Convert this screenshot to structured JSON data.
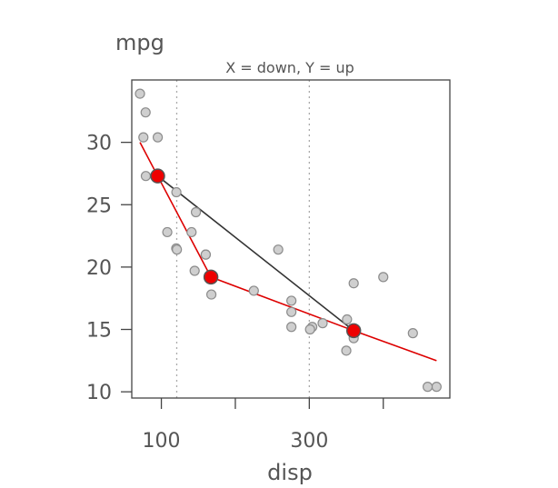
{
  "chart_data": {
    "type": "scatter",
    "title": "",
    "subtitle": "X = down, Y = up",
    "xlabel": "disp",
    "ylabel": "mpg",
    "xlim": [
      60,
      490
    ],
    "ylim": [
      9.5,
      35
    ],
    "x_ticks": [
      100,
      200,
      300,
      400
    ],
    "x_tick_labels": [
      "100",
      "",
      "300",
      ""
    ],
    "y_ticks": [
      10,
      15,
      20,
      25,
      30
    ],
    "y_tick_labels": [
      "10",
      "15",
      "20",
      "25",
      "30"
    ],
    "grid": false,
    "reference_lines_x": [
      120.8,
      300
    ],
    "points": [
      {
        "x": 160,
        "y": 21.0
      },
      {
        "x": 160,
        "y": 21.0
      },
      {
        "x": 108,
        "y": 22.8
      },
      {
        "x": 258,
        "y": 21.4
      },
      {
        "x": 360,
        "y": 18.7
      },
      {
        "x": 225,
        "y": 18.1
      },
      {
        "x": 360,
        "y": 14.3
      },
      {
        "x": 146.7,
        "y": 24.4
      },
      {
        "x": 140.8,
        "y": 22.8
      },
      {
        "x": 167.6,
        "y": 19.2
      },
      {
        "x": 167.6,
        "y": 17.8
      },
      {
        "x": 275.8,
        "y": 16.4
      },
      {
        "x": 275.8,
        "y": 17.3
      },
      {
        "x": 275.8,
        "y": 15.2
      },
      {
        "x": 472,
        "y": 10.4
      },
      {
        "x": 460,
        "y": 10.4
      },
      {
        "x": 440,
        "y": 14.7
      },
      {
        "x": 78.7,
        "y": 32.4
      },
      {
        "x": 75.7,
        "y": 30.4
      },
      {
        "x": 71.1,
        "y": 33.9
      },
      {
        "x": 120.1,
        "y": 21.5
      },
      {
        "x": 318,
        "y": 15.5
      },
      {
        "x": 304,
        "y": 15.2
      },
      {
        "x": 350,
        "y": 13.3
      },
      {
        "x": 400,
        "y": 19.2
      },
      {
        "x": 79,
        "y": 27.3
      },
      {
        "x": 120.3,
        "y": 26.0
      },
      {
        "x": 95.1,
        "y": 30.4
      },
      {
        "x": 351,
        "y": 15.8
      },
      {
        "x": 145,
        "y": 19.7
      },
      {
        "x": 301,
        "y": 15.0
      },
      {
        "x": 121,
        "y": 21.4
      }
    ],
    "series": [
      {
        "color": "#dd0000",
        "values": [
          {
            "x": 71.1,
            "y": 30.0
          },
          {
            "x": 95,
            "y": 27.3
          },
          {
            "x": 167,
            "y": 19.2
          },
          {
            "x": 360,
            "y": 14.9
          },
          {
            "x": 472,
            "y": 12.5
          }
        ]
      },
      {
        "color": "#333333",
        "values": [
          {
            "x": 95,
            "y": 27.3
          },
          {
            "x": 360,
            "y": 14.9
          }
        ]
      }
    ],
    "highlight_points": [
      {
        "x": 95,
        "y": 27.3
      },
      {
        "x": 167,
        "y": 19.2
      },
      {
        "x": 360,
        "y": 14.9
      }
    ],
    "colors": {
      "point_fill": "#cfcfcf",
      "point_stroke": "#8c8c8c",
      "highlight_fill": "#ee0000",
      "highlight_stroke": "#555555",
      "reference_line": "#aaaaaa",
      "axis": "#444444",
      "text": "#555555"
    }
  }
}
